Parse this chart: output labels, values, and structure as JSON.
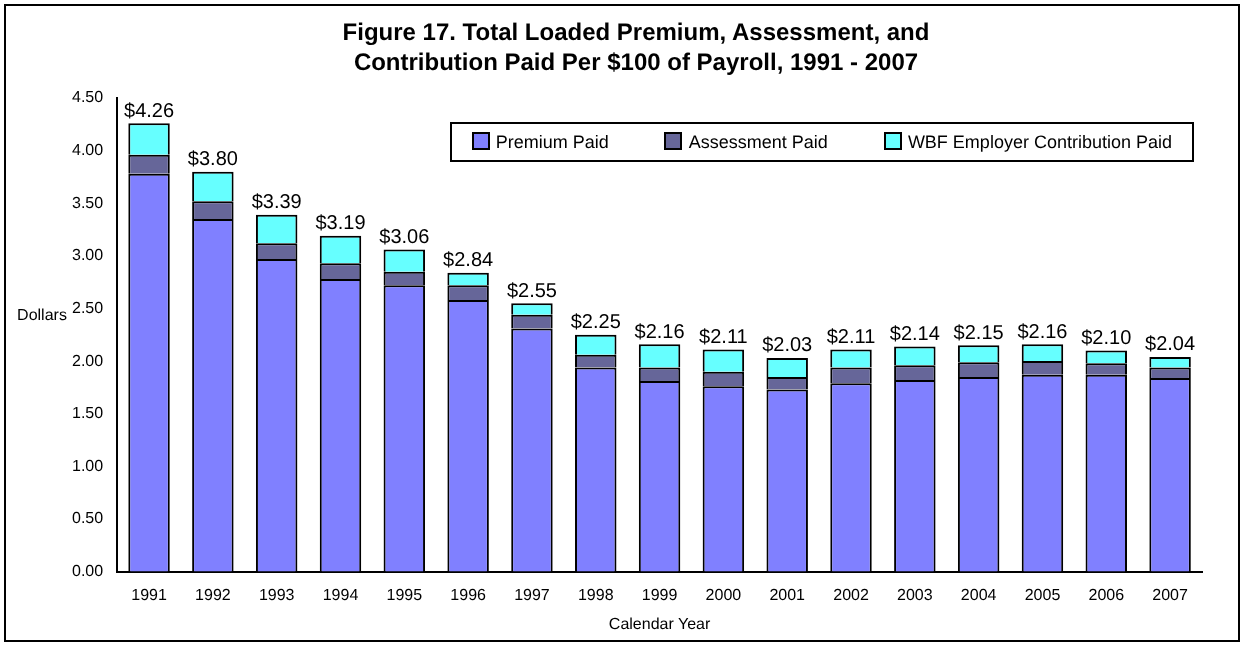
{
  "chart_data": {
    "type": "bar",
    "stacked": true,
    "title": "Figure 17. Total Loaded Premium, Assessment, and Contribution Paid Per $100 of Payroll, 1991 - 2007",
    "xlabel": "Calendar Year",
    "ylabel": "Dollars",
    "categories": [
      "1991",
      "1992",
      "1993",
      "1994",
      "1995",
      "1996",
      "1997",
      "1998",
      "1999",
      "2000",
      "2001",
      "2002",
      "2003",
      "2004",
      "2005",
      "2006",
      "2007"
    ],
    "series": [
      {
        "name": "Premium Paid",
        "color": "#8080ff",
        "values": [
          3.78,
          3.35,
          2.97,
          2.78,
          2.72,
          2.58,
          2.31,
          1.94,
          1.81,
          1.76,
          1.73,
          1.79,
          1.82,
          1.85,
          1.87,
          1.87,
          1.84
        ]
      },
      {
        "name": "Assessment Paid",
        "color": "#666699",
        "values": [
          0.18,
          0.17,
          0.15,
          0.15,
          0.13,
          0.14,
          0.13,
          0.12,
          0.13,
          0.14,
          0.12,
          0.15,
          0.14,
          0.14,
          0.13,
          0.11,
          0.1
        ]
      },
      {
        "name": "WBF Employer Contribution Paid",
        "color": "#66ffff",
        "values": [
          0.3,
          0.28,
          0.27,
          0.26,
          0.21,
          0.12,
          0.11,
          0.19,
          0.22,
          0.21,
          0.18,
          0.17,
          0.18,
          0.16,
          0.16,
          0.12,
          0.1
        ]
      }
    ],
    "totals": [
      "$4.26",
      "$3.80",
      "$3.39",
      "$3.19",
      "$3.06",
      "$2.84",
      "$2.55",
      "$2.25",
      "$2.16",
      "$2.11",
      "$2.03",
      "$2.11",
      "$2.14",
      "$2.15",
      "$2.16",
      "$2.10",
      "$2.04"
    ],
    "ylim": [
      0,
      4.5
    ],
    "yticks": [
      {
        "value": 0,
        "label": "0.00"
      },
      {
        "value": 0.5,
        "label": "0.50"
      },
      {
        "value": 1,
        "label": "1.00"
      },
      {
        "value": 1.5,
        "label": "1.50"
      },
      {
        "value": 2,
        "label": "2.00"
      },
      {
        "value": 2.5,
        "label": "2.50"
      },
      {
        "value": 3,
        "label": "3.00"
      },
      {
        "value": 3.5,
        "label": "3.50"
      },
      {
        "value": 4,
        "label": "4.00"
      },
      {
        "value": 4.5,
        "label": "4.50"
      }
    ],
    "grid": false,
    "legend": "top right"
  }
}
